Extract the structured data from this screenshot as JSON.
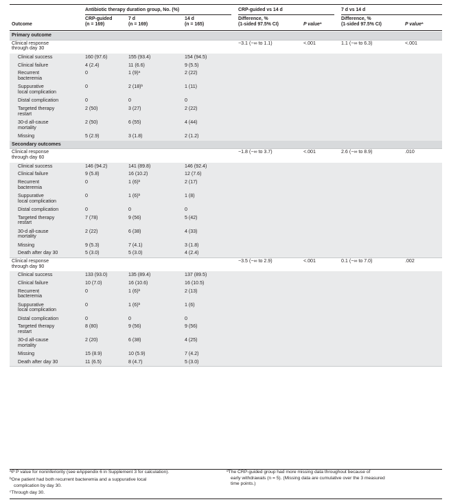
{
  "header": {
    "group_title": "Antibiotic therapy duration group, No. (%)",
    "comp1_title": "CRP-guided vs 14 d",
    "comp2_title": "7 d vs 14 d",
    "outcome": "Outcome",
    "col_crp_1": "CRP-guided",
    "col_crp_2": "(n = 169)",
    "col_7d_1": "7 d",
    "col_7d_2": "(n = 169)",
    "col_14d_1": "14 d",
    "col_14d_2": "(n = 165)",
    "diff_1": "Difference, %",
    "diff_2": "(1-sided 97.5% CI)",
    "pvalue": "P value",
    "pvalue_sup": "a"
  },
  "rows": [
    {
      "type": "section",
      "label": "Primary outcome"
    },
    {
      "type": "main",
      "label": "Clinical response through day 30",
      "label_lines": [
        "Clinical response",
        "through day 30"
      ],
      "crp": "",
      "d7": "",
      "d14": "",
      "diff1": "−3.1 (−∞ to 1.1)",
      "p1": "<.001",
      "diff2": "1.1 (−∞ to 6.3)",
      "p2": "<.001"
    },
    {
      "type": "sub",
      "label": "Clinical success",
      "crp": "160 (97.6)",
      "d7": "155 (93.4)",
      "d14": "154 (94.5)"
    },
    {
      "type": "sub",
      "label": "Clinical failure",
      "crp": "4 (2.4)",
      "d7": "11 (6.6)",
      "d14": "9 (5.5)"
    },
    {
      "type": "sub2",
      "label_lines": [
        "Recurrent",
        "bacteremia"
      ],
      "crp": "0",
      "d7": "1 (9)",
      "d7_sup": "a",
      "d14": "2 (22)"
    },
    {
      "type": "sub2",
      "label_lines": [
        "Suppurative",
        "local complication"
      ],
      "crp": "0",
      "d7": "2 (18)",
      "d7_sup": "b",
      "d14": "1 (11)"
    },
    {
      "type": "sub",
      "label": "Distal complication",
      "crp": "0",
      "d7": "0",
      "d14": "0"
    },
    {
      "type": "sub2",
      "label_lines": [
        "Targeted therapy",
        "restart"
      ],
      "crp": "2 (50)",
      "d7": "3 (27)",
      "d14": "2 (22)"
    },
    {
      "type": "sub2",
      "label_lines": [
        "30-d all-cause",
        "mortality"
      ],
      "label_sup": "c",
      "crp": "2 (50)",
      "d7": "6 (55)",
      "d14": "4 (44)"
    },
    {
      "type": "sub",
      "label": "Missing",
      "label_sup": "d",
      "crp": "5 (2.9)",
      "d7": "3 (1.8)",
      "d14": "2 (1.2)"
    },
    {
      "type": "section",
      "label": "Secondary outcomes"
    },
    {
      "type": "main",
      "label_lines": [
        "Clinical response",
        "through day 60"
      ],
      "crp": "",
      "d7": "",
      "d14": "",
      "diff1": "−1.8 (−∞ to 3.7)",
      "p1": "<.001",
      "diff2": "2.6 (−∞ to 8.9)",
      "p2": ".010"
    },
    {
      "type": "sub",
      "label": "Clinical success",
      "crp": "146 (94.2)",
      "d7": "141 (89.8)",
      "d14": "146 (92.4)"
    },
    {
      "type": "sub",
      "label": "Clinical failure",
      "crp": "9 (5.8)",
      "d7": "16 (10.2)",
      "d14": "12 (7.6)"
    },
    {
      "type": "sub2",
      "label_lines": [
        "Recurrent",
        "bacteremia"
      ],
      "crp": "0",
      "d7": "1 (6)",
      "d7_sup": "b",
      "d14": "2 (17)"
    },
    {
      "type": "sub2",
      "label_lines": [
        "Suppurative",
        "local complication"
      ],
      "crp": "0",
      "d7": "1 (6)",
      "d7_sup": "b",
      "d14": "1 (8)"
    },
    {
      "type": "sub",
      "label": "Distal complication",
      "crp": "0",
      "d7": "0",
      "d14": "0"
    },
    {
      "type": "sub2",
      "label_lines": [
        "Targeted therapy",
        "restart"
      ],
      "crp": "7 (78)",
      "d7": "9 (56)",
      "d14": "5 (42)"
    },
    {
      "type": "sub2",
      "label_lines": [
        "30-d all-cause",
        "mortality"
      ],
      "label_sup": "c",
      "crp": "2 (22)",
      "d7": "6 (38)",
      "d14": "4 (33)"
    },
    {
      "type": "sub",
      "label": "Missing",
      "label_sup": "d",
      "crp": "9 (5.3)",
      "d7": "7 (4.1)",
      "d14": "3 (1.8)"
    },
    {
      "type": "sub",
      "label": "Death after day 30",
      "crp": "5 (3.0)",
      "d7": "5 (3.0)",
      "d14": "4 (2.4)"
    },
    {
      "type": "main",
      "label_lines": [
        "Clinical response",
        "through day 90"
      ],
      "crp": "",
      "d7": "",
      "d14": "",
      "diff1": "−3.5 (−∞ to 2.9)",
      "p1": "<.001",
      "diff2": "0.1 (−∞ to 7.0)",
      "p2": ".002"
    },
    {
      "type": "sub",
      "label": "Clinical success",
      "crp": "133 (93.0)",
      "d7": "135 (89.4)",
      "d14": "137 (89.5)"
    },
    {
      "type": "sub",
      "label": "Clinical failure",
      "crp": "10 (7.0)",
      "d7": "16 (10.6)",
      "d14": "16 (10.5)"
    },
    {
      "type": "sub2",
      "label_lines": [
        "Recurrent",
        "bacteremia"
      ],
      "crp": "0",
      "d7": "1 (6)",
      "d7_sup": "b",
      "d14": "2 (13)"
    },
    {
      "type": "sub2",
      "label_lines": [
        "Suppurative",
        "local complication"
      ],
      "crp": "0",
      "d7": "1 (6)",
      "d7_sup": "b",
      "d14": "1 (6)"
    },
    {
      "type": "sub",
      "label": "Distal complication",
      "crp": "0",
      "d7": "0",
      "d14": "0"
    },
    {
      "type": "sub2",
      "label_lines": [
        "Targeted therapy",
        "restart"
      ],
      "crp": "8 (80)",
      "d7": "9 (56)",
      "d14": "9 (56)"
    },
    {
      "type": "sub2",
      "label_lines": [
        "30-d all-cause",
        "mortality"
      ],
      "label_sup": "c",
      "crp": "2 (20)",
      "d7": "6 (38)",
      "d14": "4 (25)"
    },
    {
      "type": "sub",
      "label": "Missing",
      "label_sup": "d",
      "crp": "15 (8.9)",
      "d7": "10 (5.9)",
      "d14": "7 (4.2)"
    },
    {
      "type": "sub",
      "label": "Death after day 30",
      "crp": "11 (6.5)",
      "d7": "8 (4.7)",
      "d14": "5 (3.0)"
    }
  ],
  "footnotes": {
    "a_mark": "a",
    "a": "P value for noninferiority (see eAppendix 6 in Supplement 3 for calculation).",
    "b_mark": "b",
    "b_1": "One patient had both recurrent bacteremia and a suppurative local",
    "b_2": "complication by day 30.",
    "c_mark": "c",
    "c": "Through day 30.",
    "d_mark": "d",
    "d_1": "The CRP-guided group had more missing data throughout because of",
    "d_2": "early withdrawals (n = 5). (Missing data are cumulative over the 3 measured",
    "d_3": "time points.)"
  }
}
